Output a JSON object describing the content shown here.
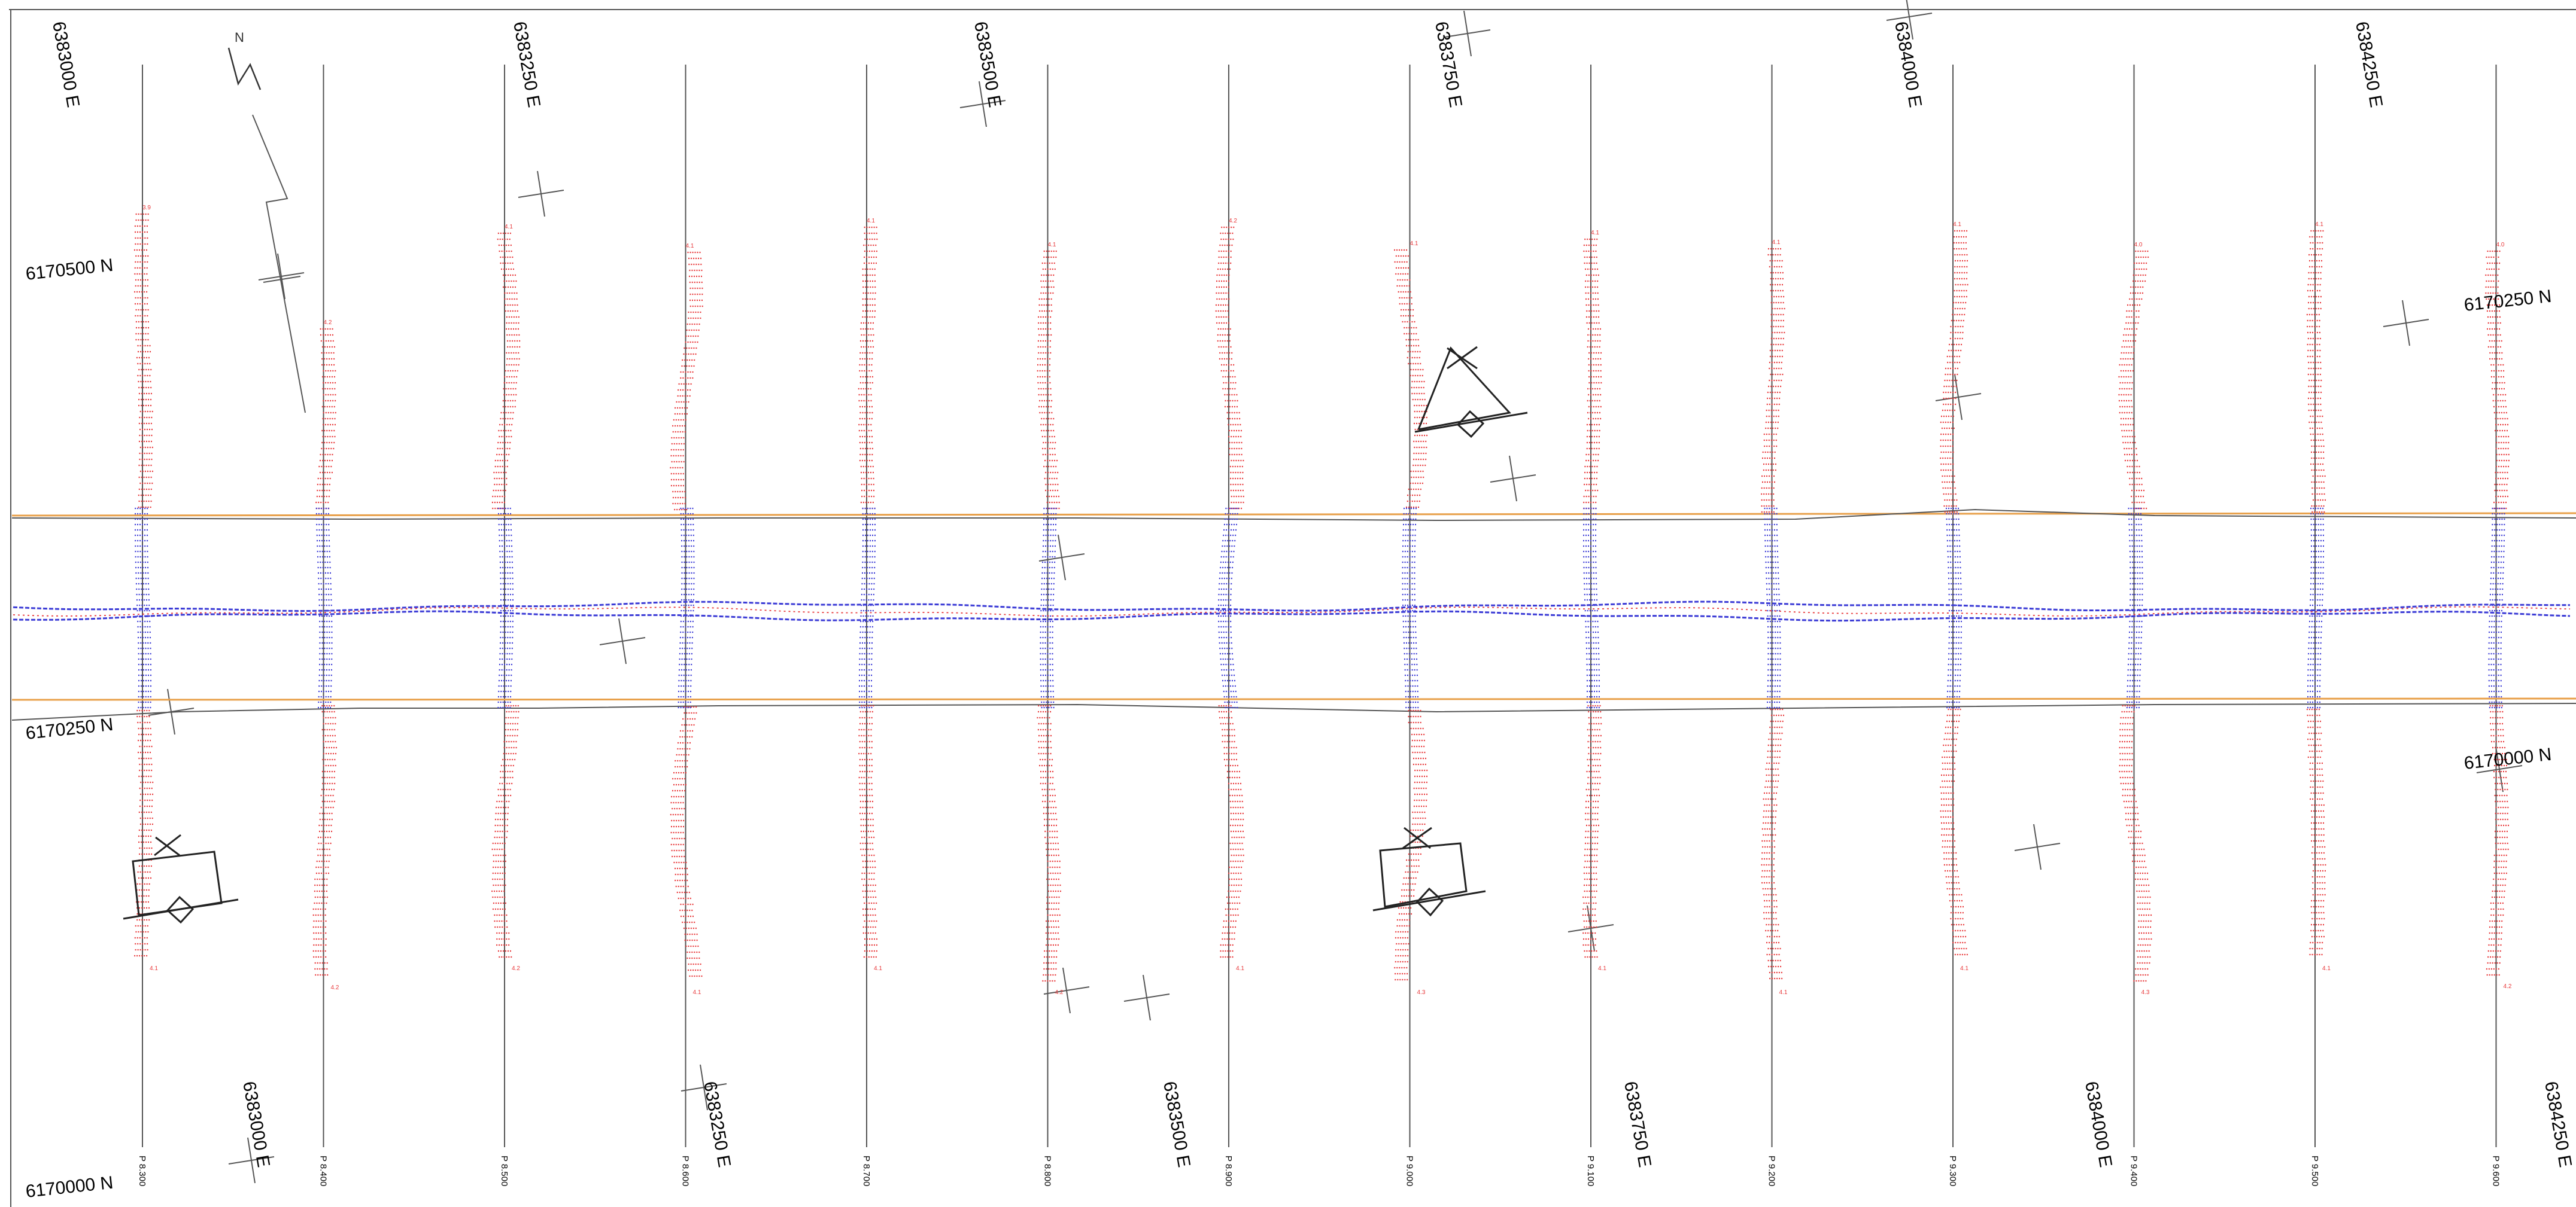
{
  "sheet": {
    "easting_top": [
      "6383000 E",
      "6383250 E",
      "6383500 E",
      "6383750 E",
      "6384000 E",
      "6384250 E"
    ],
    "easting_bottom": [
      "6383000 E",
      "6383250 E",
      "6383500 E",
      "6383750 E",
      "6384000 E",
      "6384250 E"
    ],
    "northing_left": [
      "6170500 N",
      "6170250 N",
      "6170000 N"
    ],
    "northing_right": [
      "6170250 N",
      "6170000 N"
    ],
    "north_arrow_letter": "N",
    "profiles": [
      "P 8.300",
      "P 8.400",
      "P 8.500",
      "P 8.600",
      "P 8.700",
      "P 8.800",
      "P 8.900",
      "P 9.000",
      "P 9.100",
      "P 9.200",
      "P 9.300",
      "P 9.400",
      "P 9.500",
      "P 9.600"
    ],
    "profile_top_values": [
      "3.9",
      "4.2",
      "4.1",
      "4.1",
      "4.1",
      "4.1",
      "4.2",
      "4.1",
      "4.1",
      "4.1",
      "4.1",
      "4.0",
      "4.1",
      "4.0"
    ],
    "profile_bottom_values": [
      "4.1",
      "4.2",
      "4.2",
      "4.1",
      "4.1",
      "4.2",
      "4.1",
      "4.3",
      "4.1",
      "4.1",
      "4.1",
      "4.3",
      "4.1",
      "4.2"
    ],
    "colors": {
      "upland_depth": "#e8383a",
      "channel_depth": "#3b3bd6",
      "channel_boundary": "#e8a04a",
      "gridlines": "#555555"
    },
    "icons": [
      "north-arrow-icon",
      "structure-marker-icon"
    ]
  }
}
